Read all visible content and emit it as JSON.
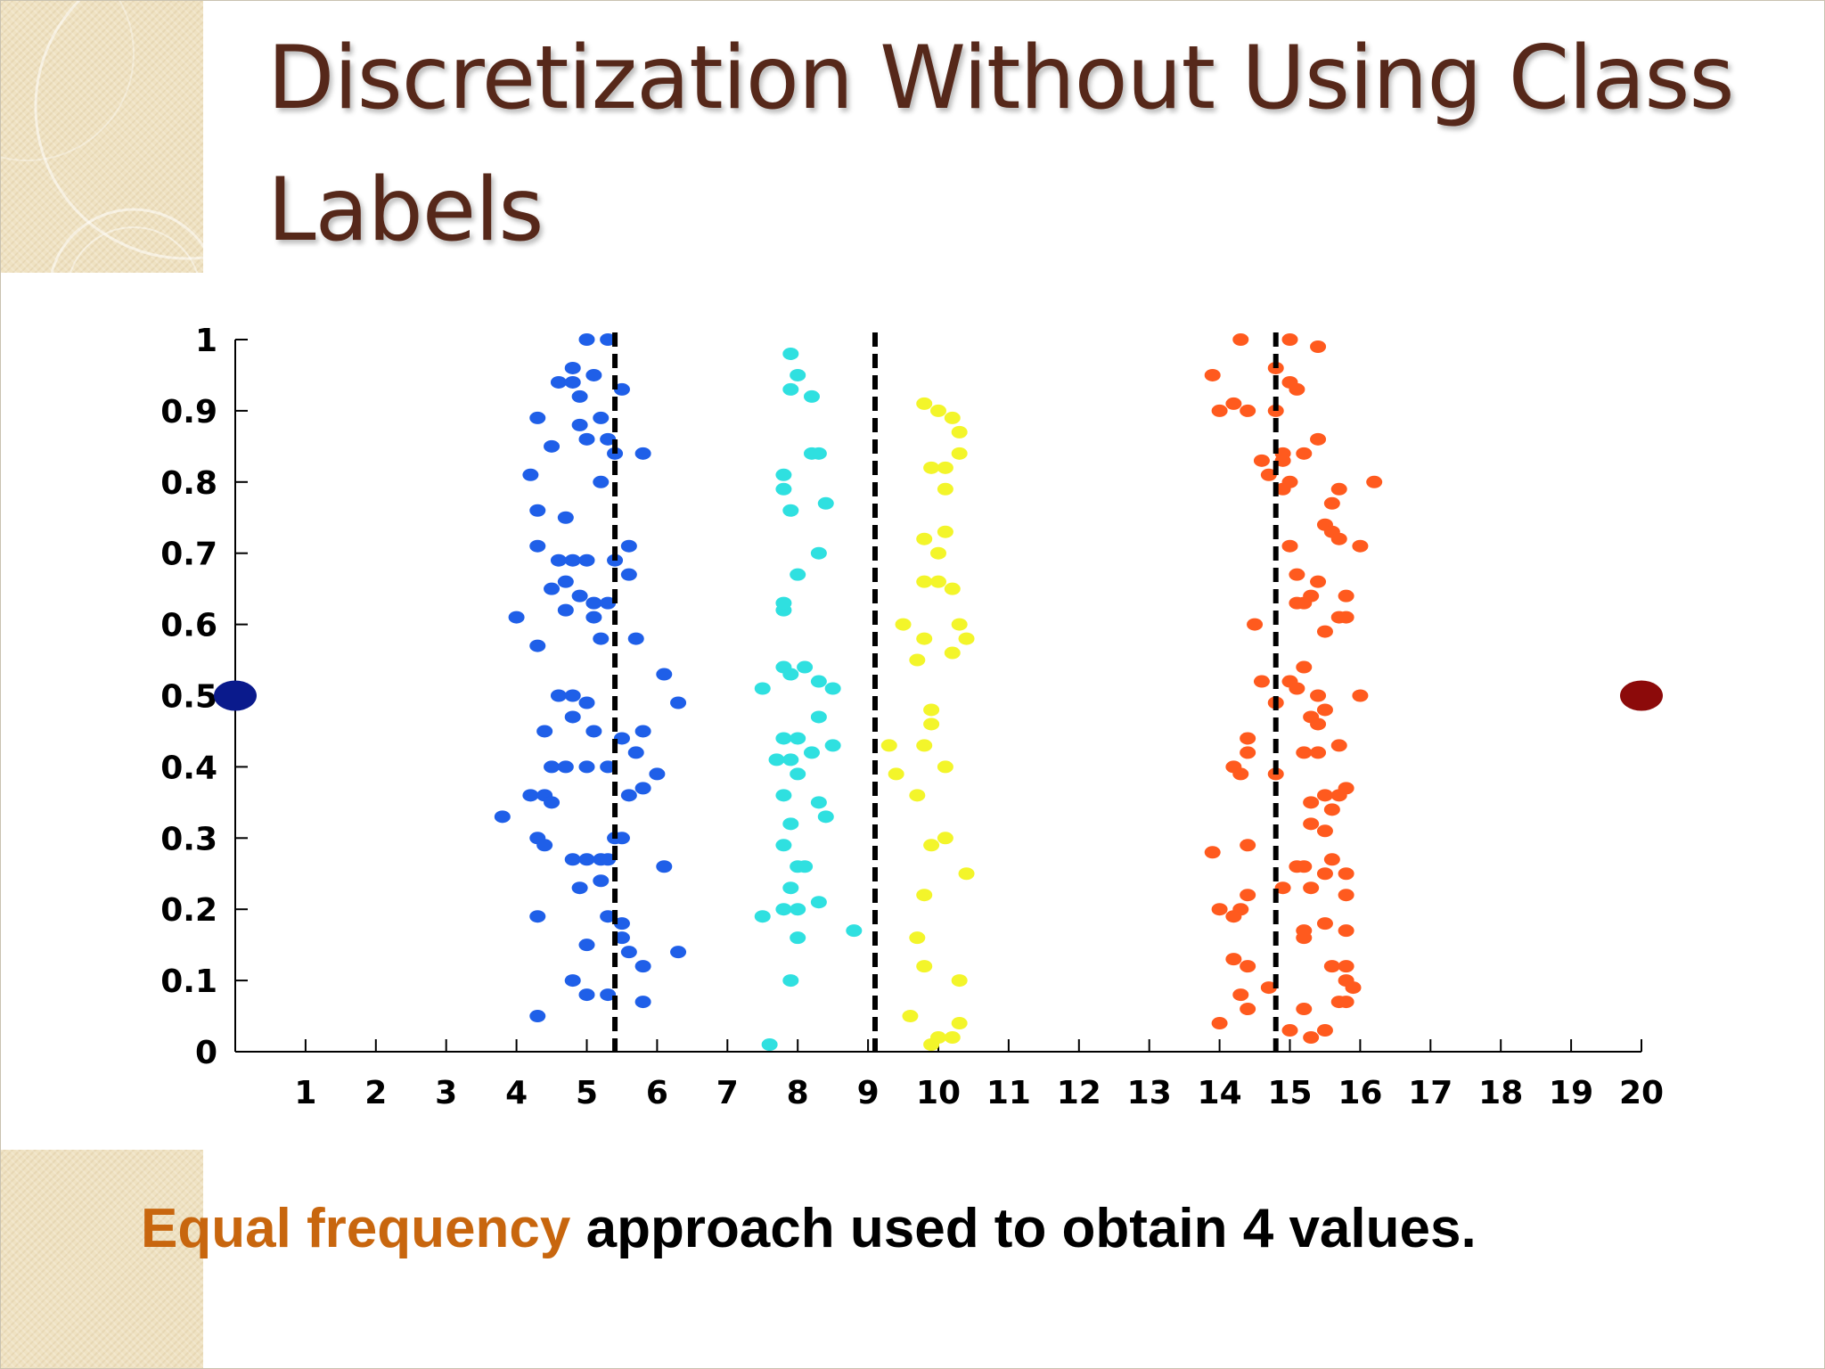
{
  "slide": {
    "title": "Discretization Without Using Class Labels",
    "caption_highlight": "Equal frequency",
    "caption_rest": " approach used to obtain 4 values."
  },
  "colors": {
    "title": "#56281a",
    "highlight": "#c8660e",
    "corner": "#efe2c2"
  },
  "chart_data": {
    "type": "scatter",
    "title": "",
    "xlabel": "",
    "ylabel": "",
    "xlim": [
      0,
      20
    ],
    "ylim": [
      0,
      1
    ],
    "xticks": [
      "1",
      "2",
      "3",
      "4",
      "5",
      "6",
      "7",
      "8",
      "9",
      "10",
      "11",
      "12",
      "13",
      "14",
      "15",
      "16",
      "17",
      "18",
      "19",
      "20"
    ],
    "yticks": [
      "0",
      "0.1",
      "0.2",
      "0.3",
      "0.4",
      "0.5",
      "0.6",
      "0.7",
      "0.8",
      "0.9",
      "1"
    ],
    "grid": false,
    "cut_points": [
      5.4,
      9.1,
      14.8
    ],
    "series": [
      {
        "color": "#1f5fe8",
        "points": [
          [
            5.0,
            1.0
          ],
          [
            5.3,
            1.0
          ],
          [
            4.8,
            0.96
          ],
          [
            4.6,
            0.94
          ],
          [
            4.8,
            0.94
          ],
          [
            5.1,
            0.95
          ],
          [
            5.5,
            0.93
          ],
          [
            4.9,
            0.92
          ],
          [
            4.3,
            0.89
          ],
          [
            4.9,
            0.88
          ],
          [
            5.2,
            0.89
          ],
          [
            5.3,
            0.86
          ],
          [
            5.0,
            0.86
          ],
          [
            4.5,
            0.85
          ],
          [
            5.4,
            0.84
          ],
          [
            5.8,
            0.84
          ],
          [
            5.2,
            0.8
          ],
          [
            4.2,
            0.81
          ],
          [
            4.3,
            0.76
          ],
          [
            4.7,
            0.75
          ],
          [
            4.3,
            0.71
          ],
          [
            5.6,
            0.71
          ],
          [
            4.6,
            0.69
          ],
          [
            4.8,
            0.69
          ],
          [
            5.0,
            0.69
          ],
          [
            5.4,
            0.69
          ],
          [
            4.7,
            0.66
          ],
          [
            5.6,
            0.67
          ],
          [
            4.5,
            0.65
          ],
          [
            4.9,
            0.64
          ],
          [
            5.1,
            0.63
          ],
          [
            5.3,
            0.63
          ],
          [
            4.7,
            0.62
          ],
          [
            5.1,
            0.61
          ],
          [
            4.0,
            0.61
          ],
          [
            5.2,
            0.58
          ],
          [
            5.7,
            0.58
          ],
          [
            4.3,
            0.57
          ],
          [
            6.1,
            0.53
          ],
          [
            6.3,
            0.49
          ],
          [
            4.6,
            0.5
          ],
          [
            4.8,
            0.5
          ],
          [
            5.0,
            0.49
          ],
          [
            4.8,
            0.47
          ],
          [
            5.1,
            0.45
          ],
          [
            5.5,
            0.44
          ],
          [
            5.8,
            0.45
          ],
          [
            4.4,
            0.45
          ],
          [
            5.7,
            0.42
          ],
          [
            4.5,
            0.4
          ],
          [
            4.7,
            0.4
          ],
          [
            5.0,
            0.4
          ],
          [
            5.3,
            0.4
          ],
          [
            6.0,
            0.39
          ],
          [
            5.8,
            0.37
          ],
          [
            4.2,
            0.36
          ],
          [
            4.4,
            0.36
          ],
          [
            4.5,
            0.35
          ],
          [
            5.6,
            0.36
          ],
          [
            3.8,
            0.33
          ],
          [
            4.3,
            0.3
          ],
          [
            4.4,
            0.29
          ],
          [
            5.4,
            0.3
          ],
          [
            5.5,
            0.3
          ],
          [
            4.8,
            0.27
          ],
          [
            5.0,
            0.27
          ],
          [
            5.2,
            0.27
          ],
          [
            5.3,
            0.27
          ],
          [
            6.1,
            0.26
          ],
          [
            4.9,
            0.23
          ],
          [
            5.2,
            0.24
          ],
          [
            4.3,
            0.19
          ],
          [
            5.3,
            0.19
          ],
          [
            5.5,
            0.18
          ],
          [
            5.5,
            0.16
          ],
          [
            5.0,
            0.15
          ],
          [
            5.6,
            0.14
          ],
          [
            5.8,
            0.12
          ],
          [
            6.3,
            0.14
          ],
          [
            4.8,
            0.1
          ],
          [
            5.0,
            0.08
          ],
          [
            5.3,
            0.08
          ],
          [
            5.8,
            0.07
          ],
          [
            4.3,
            0.05
          ]
        ]
      },
      {
        "color": "#2fe0e0",
        "points": [
          [
            7.9,
            0.98
          ],
          [
            8.0,
            0.95
          ],
          [
            7.9,
            0.93
          ],
          [
            8.2,
            0.92
          ],
          [
            8.2,
            0.84
          ],
          [
            8.3,
            0.84
          ],
          [
            7.8,
            0.81
          ],
          [
            8.4,
            0.77
          ],
          [
            7.8,
            0.79
          ],
          [
            7.9,
            0.76
          ],
          [
            8.3,
            0.7
          ],
          [
            8.0,
            0.67
          ],
          [
            7.8,
            0.62
          ],
          [
            7.8,
            0.63
          ],
          [
            7.8,
            0.54
          ],
          [
            7.9,
            0.53
          ],
          [
            8.1,
            0.54
          ],
          [
            8.3,
            0.52
          ],
          [
            8.5,
            0.51
          ],
          [
            7.5,
            0.51
          ],
          [
            8.3,
            0.47
          ],
          [
            8.5,
            0.43
          ],
          [
            7.8,
            0.44
          ],
          [
            8.0,
            0.44
          ],
          [
            8.2,
            0.42
          ],
          [
            7.7,
            0.41
          ],
          [
            7.9,
            0.41
          ],
          [
            8.0,
            0.39
          ],
          [
            7.8,
            0.36
          ],
          [
            8.3,
            0.35
          ],
          [
            8.4,
            0.33
          ],
          [
            7.9,
            0.32
          ],
          [
            7.8,
            0.29
          ],
          [
            8.0,
            0.26
          ],
          [
            8.1,
            0.26
          ],
          [
            7.9,
            0.23
          ],
          [
            8.3,
            0.21
          ],
          [
            7.5,
            0.19
          ],
          [
            7.8,
            0.2
          ],
          [
            8.0,
            0.2
          ],
          [
            8.8,
            0.17
          ],
          [
            8.0,
            0.16
          ],
          [
            7.9,
            0.1
          ],
          [
            7.6,
            0.01
          ]
        ]
      },
      {
        "color": "#f3f52a",
        "points": [
          [
            9.8,
            0.91
          ],
          [
            10.0,
            0.9
          ],
          [
            10.2,
            0.89
          ],
          [
            10.3,
            0.87
          ],
          [
            10.3,
            0.84
          ],
          [
            9.9,
            0.82
          ],
          [
            10.1,
            0.82
          ],
          [
            10.1,
            0.79
          ],
          [
            10.1,
            0.73
          ],
          [
            9.8,
            0.72
          ],
          [
            10.0,
            0.7
          ],
          [
            9.8,
            0.66
          ],
          [
            10.0,
            0.66
          ],
          [
            10.2,
            0.65
          ],
          [
            10.3,
            0.6
          ],
          [
            9.5,
            0.6
          ],
          [
            10.4,
            0.58
          ],
          [
            9.8,
            0.58
          ],
          [
            10.2,
            0.56
          ],
          [
            9.7,
            0.55
          ],
          [
            9.9,
            0.48
          ],
          [
            9.9,
            0.46
          ],
          [
            9.8,
            0.43
          ],
          [
            9.3,
            0.43
          ],
          [
            10.1,
            0.4
          ],
          [
            9.4,
            0.39
          ],
          [
            9.7,
            0.36
          ],
          [
            10.1,
            0.3
          ],
          [
            9.9,
            0.29
          ],
          [
            10.4,
            0.25
          ],
          [
            9.8,
            0.22
          ],
          [
            9.7,
            0.16
          ],
          [
            9.8,
            0.12
          ],
          [
            10.3,
            0.1
          ],
          [
            9.6,
            0.05
          ],
          [
            10.3,
            0.04
          ],
          [
            10.0,
            0.02
          ],
          [
            10.2,
            0.02
          ],
          [
            9.9,
            0.01
          ]
        ]
      },
      {
        "color": "#ff5a1e",
        "points": [
          [
            14.3,
            1.0
          ],
          [
            15.0,
            1.0
          ],
          [
            15.4,
            0.99
          ],
          [
            13.9,
            0.95
          ],
          [
            14.8,
            0.96
          ],
          [
            15.0,
            0.94
          ],
          [
            15.1,
            0.93
          ],
          [
            14.2,
            0.91
          ],
          [
            14.0,
            0.9
          ],
          [
            14.4,
            0.9
          ],
          [
            14.8,
            0.9
          ],
          [
            15.4,
            0.86
          ],
          [
            14.9,
            0.84
          ],
          [
            15.2,
            0.84
          ],
          [
            14.6,
            0.83
          ],
          [
            14.9,
            0.83
          ],
          [
            15.0,
            0.8
          ],
          [
            14.7,
            0.81
          ],
          [
            16.2,
            0.8
          ],
          [
            15.7,
            0.79
          ],
          [
            14.9,
            0.79
          ],
          [
            15.6,
            0.77
          ],
          [
            15.5,
            0.74
          ],
          [
            15.6,
            0.73
          ],
          [
            15.7,
            0.72
          ],
          [
            16.0,
            0.71
          ],
          [
            15.0,
            0.71
          ],
          [
            15.1,
            0.67
          ],
          [
            15.4,
            0.66
          ],
          [
            15.3,
            0.64
          ],
          [
            15.8,
            0.64
          ],
          [
            15.1,
            0.63
          ],
          [
            15.2,
            0.63
          ],
          [
            15.7,
            0.61
          ],
          [
            15.8,
            0.61
          ],
          [
            14.5,
            0.6
          ],
          [
            15.5,
            0.59
          ],
          [
            15.2,
            0.54
          ],
          [
            14.6,
            0.52
          ],
          [
            15.0,
            0.52
          ],
          [
            15.1,
            0.51
          ],
          [
            15.4,
            0.5
          ],
          [
            16.0,
            0.5
          ],
          [
            14.8,
            0.49
          ],
          [
            15.5,
            0.48
          ],
          [
            15.3,
            0.47
          ],
          [
            15.4,
            0.46
          ],
          [
            14.4,
            0.44
          ],
          [
            15.7,
            0.43
          ],
          [
            15.2,
            0.42
          ],
          [
            14.4,
            0.42
          ],
          [
            15.4,
            0.42
          ],
          [
            14.2,
            0.4
          ],
          [
            14.3,
            0.39
          ],
          [
            14.8,
            0.39
          ],
          [
            15.8,
            0.37
          ],
          [
            15.5,
            0.36
          ],
          [
            15.7,
            0.36
          ],
          [
            15.3,
            0.35
          ],
          [
            15.6,
            0.34
          ],
          [
            15.3,
            0.32
          ],
          [
            15.5,
            0.31
          ],
          [
            14.4,
            0.29
          ],
          [
            13.9,
            0.28
          ],
          [
            15.6,
            0.27
          ],
          [
            15.1,
            0.26
          ],
          [
            15.2,
            0.26
          ],
          [
            15.5,
            0.25
          ],
          [
            15.8,
            0.25
          ],
          [
            14.9,
            0.23
          ],
          [
            14.4,
            0.22
          ],
          [
            15.3,
            0.23
          ],
          [
            15.8,
            0.22
          ],
          [
            14.3,
            0.2
          ],
          [
            14.0,
            0.2
          ],
          [
            14.2,
            0.19
          ],
          [
            15.5,
            0.18
          ],
          [
            15.2,
            0.17
          ],
          [
            15.2,
            0.16
          ],
          [
            15.8,
            0.17
          ],
          [
            14.2,
            0.13
          ],
          [
            14.4,
            0.12
          ],
          [
            15.6,
            0.12
          ],
          [
            15.8,
            0.12
          ],
          [
            15.8,
            0.1
          ],
          [
            15.9,
            0.09
          ],
          [
            14.3,
            0.08
          ],
          [
            15.7,
            0.07
          ],
          [
            15.8,
            0.07
          ],
          [
            14.7,
            0.09
          ],
          [
            15.2,
            0.06
          ],
          [
            14.4,
            0.06
          ],
          [
            14.0,
            0.04
          ],
          [
            15.0,
            0.03
          ],
          [
            15.3,
            0.02
          ],
          [
            15.5,
            0.03
          ]
        ]
      },
      {
        "color": "#0a1a8c",
        "points": [
          [
            0.0,
            0.5
          ]
        ],
        "size": "large"
      },
      {
        "color": "#8c0a0a",
        "points": [
          [
            20.0,
            0.5
          ]
        ],
        "size": "large"
      }
    ]
  }
}
